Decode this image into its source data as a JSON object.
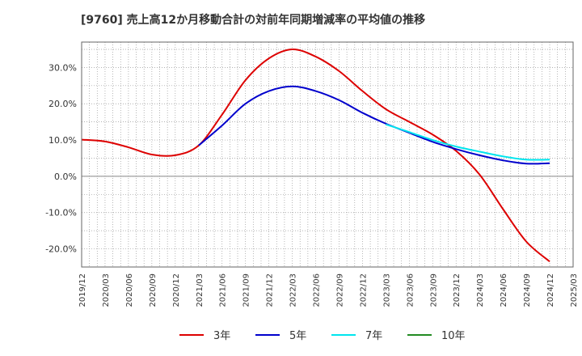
{
  "chart_data": {
    "type": "line",
    "title": "[9760]  売上高12か月移動合計の対前年同期増減率の平均値の推移",
    "xlabel": "",
    "ylabel": "",
    "x_categories": [
      "2019/12",
      "2020/03",
      "2020/06",
      "2020/09",
      "2020/12",
      "2021/03",
      "2021/06",
      "2021/09",
      "2021/12",
      "2022/03",
      "2022/06",
      "2022/09",
      "2022/12",
      "2023/03",
      "2023/06",
      "2023/09",
      "2023/12",
      "2024/03",
      "2024/06",
      "2024/09",
      "2024/12",
      "2025/03"
    ],
    "y_ticks": [
      "30.0%",
      "20.0%",
      "10.0%",
      "0.0%",
      "-10.0%",
      "-20.0%"
    ],
    "ylim": [
      -25,
      37
    ],
    "grid": true,
    "legend_position": "bottom",
    "series": [
      {
        "name": "3年",
        "color": "#dd0000",
        "points": [
          [
            "2019/12",
            10.1
          ],
          [
            "2020/03",
            9.6
          ],
          [
            "2020/06",
            8.0
          ],
          [
            "2020/09",
            6.0
          ],
          [
            "2020/12",
            5.8
          ],
          [
            "2021/03",
            8.5
          ],
          [
            "2021/06",
            17.0
          ],
          [
            "2021/09",
            26.5
          ],
          [
            "2021/12",
            32.5
          ],
          [
            "2022/03",
            35.0
          ],
          [
            "2022/06",
            33.0
          ],
          [
            "2022/09",
            29.0
          ],
          [
            "2022/12",
            23.5
          ],
          [
            "2023/03",
            18.5
          ],
          [
            "2023/06",
            15.0
          ],
          [
            "2023/09",
            11.5
          ],
          [
            "2023/12",
            7.0
          ],
          [
            "2024/03",
            0.5
          ],
          [
            "2024/06",
            -9.0
          ],
          [
            "2024/09",
            -18.0
          ],
          [
            "2024/12",
            -23.5
          ]
        ]
      },
      {
        "name": "5年",
        "color": "#0000cc",
        "points": [
          [
            "2021/03",
            8.5
          ],
          [
            "2021/06",
            14.0
          ],
          [
            "2021/09",
            20.0
          ],
          [
            "2021/12",
            23.5
          ],
          [
            "2022/03",
            24.8
          ],
          [
            "2022/06",
            23.5
          ],
          [
            "2022/09",
            21.0
          ],
          [
            "2022/12",
            17.5
          ],
          [
            "2023/03",
            14.5
          ],
          [
            "2023/06",
            12.0
          ],
          [
            "2023/09",
            9.5
          ],
          [
            "2023/12",
            7.5
          ],
          [
            "2024/03",
            5.8
          ],
          [
            "2024/06",
            4.4
          ],
          [
            "2024/09",
            3.5
          ],
          [
            "2024/12",
            3.6
          ]
        ]
      },
      {
        "name": "7年",
        "color": "#00e5ee",
        "points": [
          [
            "2023/03",
            14.3
          ],
          [
            "2023/06",
            12.2
          ],
          [
            "2023/09",
            10.0
          ],
          [
            "2023/12",
            8.2
          ],
          [
            "2024/03",
            6.8
          ],
          [
            "2024/06",
            5.5
          ],
          [
            "2024/09",
            4.6
          ],
          [
            "2024/12",
            4.6
          ]
        ]
      },
      {
        "name": "10年",
        "color": "#228b22",
        "points": []
      }
    ]
  }
}
